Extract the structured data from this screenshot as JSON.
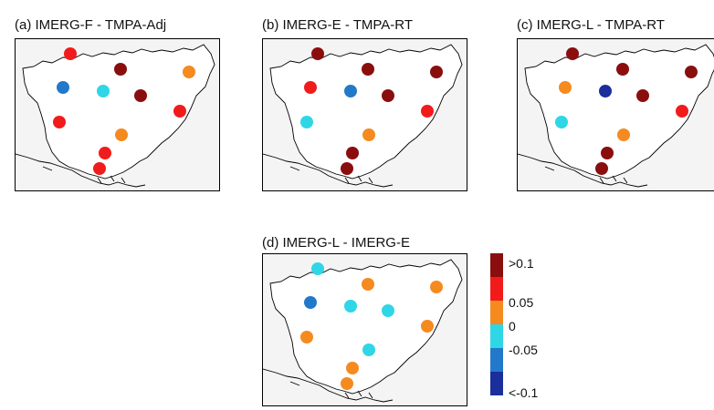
{
  "panels": [
    {
      "id": "a",
      "title": "(a)  IMERG-F - TMPA-Adj",
      "stations": [
        {
          "site": 1,
          "cls": "red"
        },
        {
          "site": 2,
          "cls": "darkred"
        },
        {
          "site": 3,
          "cls": "orange"
        },
        {
          "site": 4,
          "cls": "blue"
        },
        {
          "site": 5,
          "cls": "cyan"
        },
        {
          "site": 6,
          "cls": "darkred"
        },
        {
          "site": 7,
          "cls": "red"
        },
        {
          "site": 8,
          "cls": "red"
        },
        {
          "site": 9,
          "cls": "orange"
        },
        {
          "site": 10,
          "cls": "red"
        },
        {
          "site": 11,
          "cls": "red"
        }
      ]
    },
    {
      "id": "b",
      "title": "(b)    IMERG-E - TMPA-RT",
      "stations": [
        {
          "site": 1,
          "cls": "darkred"
        },
        {
          "site": 2,
          "cls": "darkred"
        },
        {
          "site": 3,
          "cls": "darkred"
        },
        {
          "site": 4,
          "cls": "red"
        },
        {
          "site": 5,
          "cls": "blue"
        },
        {
          "site": 6,
          "cls": "darkred"
        },
        {
          "site": 7,
          "cls": "cyan"
        },
        {
          "site": 8,
          "cls": "red"
        },
        {
          "site": 9,
          "cls": "orange"
        },
        {
          "site": 10,
          "cls": "darkred"
        },
        {
          "site": 11,
          "cls": "darkred"
        }
      ]
    },
    {
      "id": "c",
      "title": "(c)    IMERG-L - TMPA-RT",
      "stations": [
        {
          "site": 1,
          "cls": "darkred"
        },
        {
          "site": 2,
          "cls": "darkred"
        },
        {
          "site": 3,
          "cls": "darkred"
        },
        {
          "site": 4,
          "cls": "orange"
        },
        {
          "site": 5,
          "cls": "navy"
        },
        {
          "site": 6,
          "cls": "darkred"
        },
        {
          "site": 7,
          "cls": "cyan"
        },
        {
          "site": 8,
          "cls": "red"
        },
        {
          "site": 9,
          "cls": "orange"
        },
        {
          "site": 10,
          "cls": "darkred"
        },
        {
          "site": 11,
          "cls": "darkred"
        }
      ]
    },
    {
      "id": "d",
      "title": "(d)    IMERG-L - IMERG-E",
      "stations": [
        {
          "site": 1,
          "cls": "cyan"
        },
        {
          "site": 2,
          "cls": "orange"
        },
        {
          "site": 3,
          "cls": "orange"
        },
        {
          "site": 4,
          "cls": "blue"
        },
        {
          "site": 5,
          "cls": "cyan"
        },
        {
          "site": 6,
          "cls": "cyan"
        },
        {
          "site": 7,
          "cls": "orange"
        },
        {
          "site": 8,
          "cls": "orange"
        },
        {
          "site": 9,
          "cls": "cyan"
        },
        {
          "site": 10,
          "cls": "orange"
        },
        {
          "site": 11,
          "cls": "orange"
        }
      ]
    }
  ],
  "colors": {
    "darkred": "#8b0e0e",
    "red": "#f21b1b",
    "orange": "#f58a1f",
    "cyan": "#2fd6e6",
    "blue": "#2379c9",
    "navy": "#1a2e9c"
  },
  "legend": {
    "colors": [
      "#8b0e0e",
      "#f21b1b",
      "#f58a1f",
      "#2fd6e6",
      "#2379c9",
      "#1a2e9c"
    ],
    "labels": [
      ">0.1",
      "0.05",
      "0",
      "-0.05",
      "<-0.1"
    ]
  }
}
